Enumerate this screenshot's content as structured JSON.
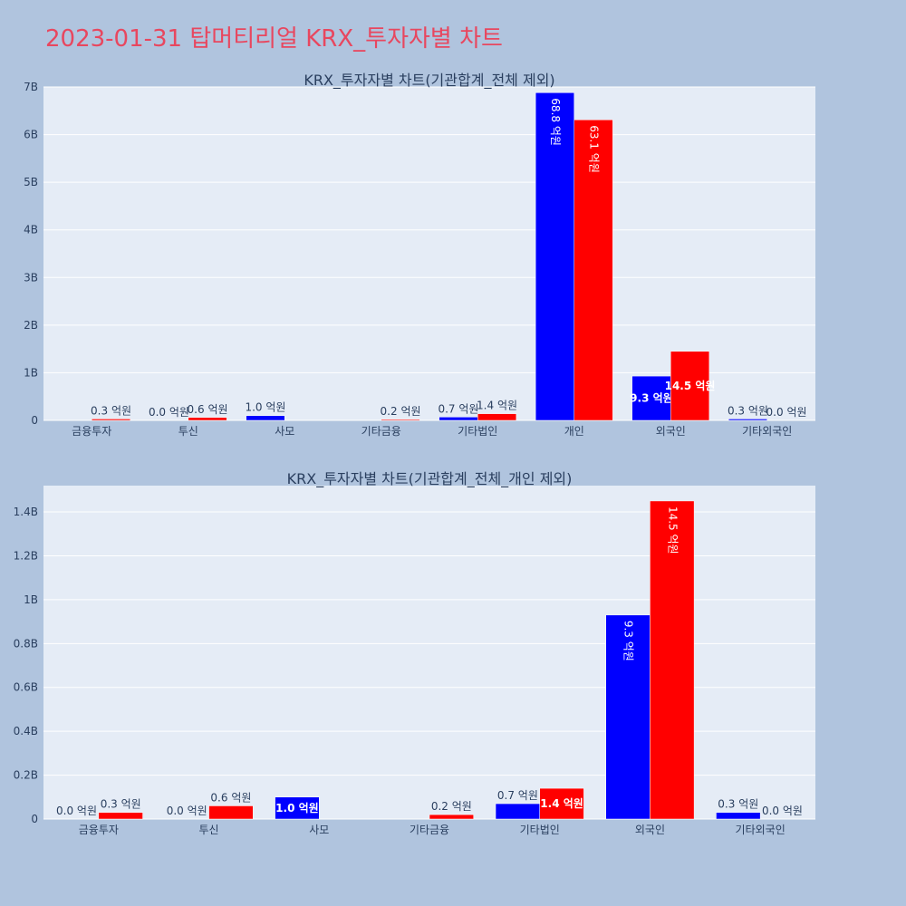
{
  "page_title": "2023-01-31 탑머티리얼 KRX_투자자별 차트",
  "colors": {
    "background": "#b0c4de",
    "plot_bg": "#e5ecf6",
    "title": "#e8475f",
    "buy": "#0000ff",
    "sell": "#ff0000",
    "text": "#2a3f5f"
  },
  "chart_data": [
    {
      "type": "bar",
      "title": "KRX_투자자별 차트(기관합계_전체 제외)",
      "categories": [
        "금융투자",
        "투신",
        "사모",
        "기타금융",
        "기타법인",
        "개인",
        "외국인",
        "기타외국인"
      ],
      "series": [
        {
          "values": [
            0.0,
            0.0,
            0.1,
            0.0,
            0.07,
            6.88,
            0.93,
            0.03
          ],
          "labels": [
            "",
            "0.0 억원",
            "1.0 억원",
            "",
            "0.7 억원",
            "68.8 억원",
            "9.3 억원",
            "0.3 억원"
          ]
        },
        {
          "values": [
            0.03,
            0.06,
            0.0,
            0.02,
            0.14,
            6.31,
            1.45,
            0.0
          ],
          "labels": [
            "0.3 억원",
            "0.6 억원",
            "",
            "0.2 억원",
            "1.4 억원",
            "63.1 억원",
            "14.5 억원",
            "0.0 억원"
          ]
        }
      ],
      "yticks": [
        "0",
        "1B",
        "2B",
        "3B",
        "4B",
        "5B",
        "6B",
        "7B"
      ],
      "ytick_values": [
        0,
        1,
        2,
        3,
        4,
        5,
        6,
        7
      ],
      "ylim": [
        0,
        7.0
      ],
      "grid": true
    },
    {
      "type": "bar",
      "title": "KRX_투자자별 차트(기관합계_전체_개인 제외)",
      "categories": [
        "금융투자",
        "투신",
        "사모",
        "기타금융",
        "기타법인",
        "외국인",
        "기타외국인"
      ],
      "series": [
        {
          "values": [
            0.0,
            0.0,
            0.1,
            0.0,
            0.07,
            0.93,
            0.03
          ],
          "labels": [
            "0.0 억원",
            "0.0 억원",
            "1.0 억원",
            "",
            "0.7 억원",
            "9.3 억원",
            "0.3 억원"
          ]
        },
        {
          "values": [
            0.03,
            0.06,
            0.0,
            0.02,
            0.14,
            1.45,
            0.0
          ],
          "labels": [
            "0.3 억원",
            "0.6 억원",
            "",
            "0.2 억원",
            "1.4 억원",
            "14.5 억원",
            "0.0 억원"
          ]
        }
      ],
      "yticks": [
        "0",
        "0.2B",
        "0.4B",
        "0.6B",
        "0.8B",
        "1B",
        "1.2B",
        "1.4B"
      ],
      "ytick_values": [
        0,
        0.2,
        0.4,
        0.6,
        0.8,
        1.0,
        1.2,
        1.4
      ],
      "ylim": [
        0,
        1.52
      ],
      "grid": true
    }
  ]
}
